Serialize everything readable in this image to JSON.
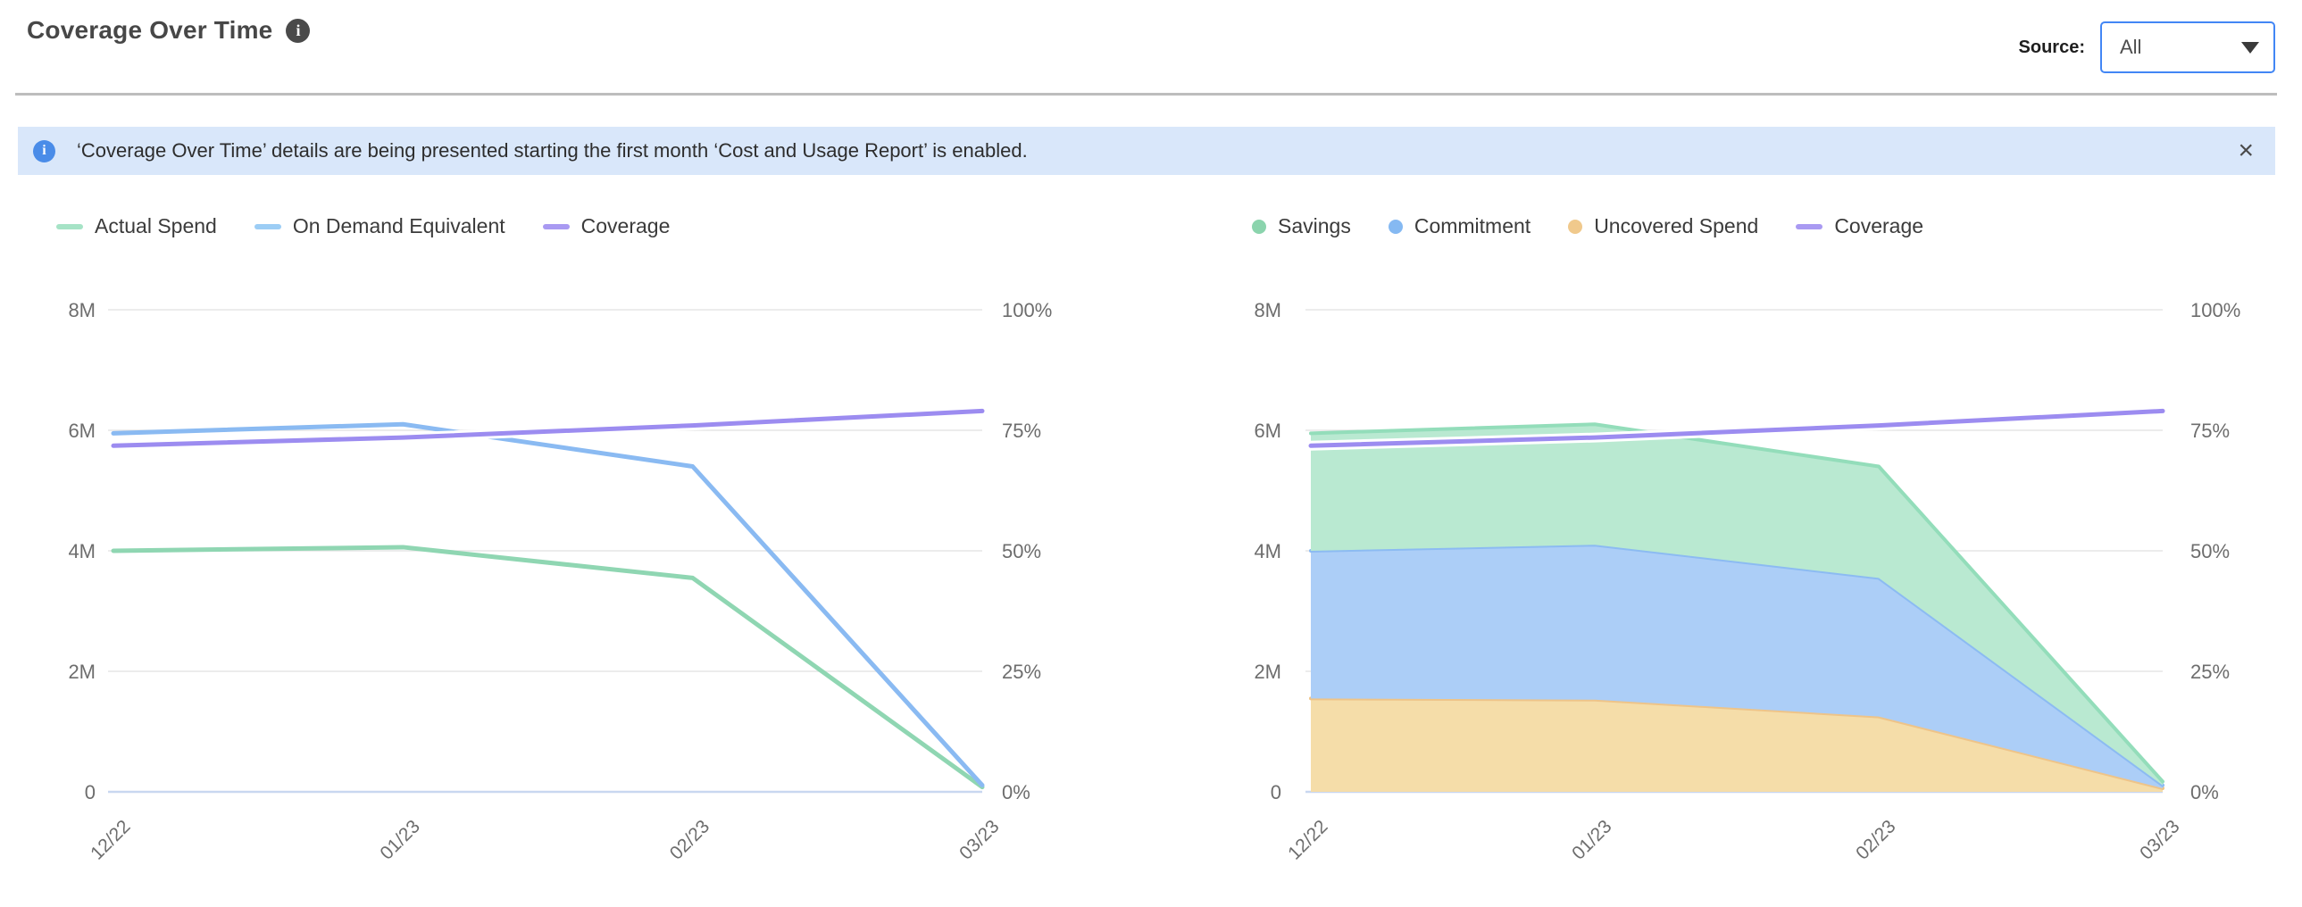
{
  "header": {
    "title": "Coverage Over Time",
    "icons": {
      "info_glyph": "i"
    },
    "source_label": "Source:",
    "source_value": "All"
  },
  "banner": {
    "icon_glyph": "i",
    "text": "‘Coverage Over Time’ details are being presented starting the first month ‘Cost and Usage Report’ is enabled.",
    "close_glyph": "×"
  },
  "colors": {
    "banner_bg": "#d9e7fa",
    "banner_icon": "#4a8ce8",
    "dropdown_border": "#4286f5",
    "grid": "#e5e5e5",
    "baseline": "#c9d7f0",
    "axis_text": "#6d6d6d",
    "green": "#8fd6b2",
    "blue": "#8abaf2",
    "purple": "#9c8cf0",
    "tan": "#f0c98c"
  },
  "chart_data": [
    {
      "id": "spend-coverage-line-chart",
      "type": "line",
      "categories": [
        "12/22",
        "01/23",
        "02/23",
        "03/23"
      ],
      "y_left": {
        "ticks": [
          "8M",
          "6M",
          "4M",
          "2M",
          "0"
        ],
        "max": 8000000,
        "lim": [
          0,
          8000000
        ]
      },
      "y_right": {
        "ticks": [
          "100%",
          "75%",
          "50%",
          "25%",
          "0%"
        ],
        "max": 100,
        "lim": [
          0,
          100
        ]
      },
      "grid": true,
      "legend_position": "top-left",
      "legend": [
        {
          "label": "Actual Spend",
          "marker": "line",
          "color": "#a6e3c6"
        },
        {
          "label": "On Demand Equivalent",
          "marker": "line",
          "color": "#9ccdf5"
        },
        {
          "label": "Coverage",
          "marker": "line",
          "color": "#a99af2"
        }
      ],
      "series": [
        {
          "name": "Actual Spend",
          "axis": "left",
          "kind": "line",
          "color": "#8fd6b2",
          "values": [
            4000000,
            4060000,
            3550000,
            80000
          ]
        },
        {
          "name": "On Demand Equivalent",
          "axis": "left",
          "kind": "line",
          "color": "#8abaf2",
          "values": [
            5950000,
            6100000,
            5400000,
            110000
          ]
        },
        {
          "name": "Coverage",
          "axis": "right",
          "kind": "line",
          "color": "#9c8cf0",
          "halo": true,
          "values": [
            71.8,
            73.5,
            76,
            79
          ]
        }
      ]
    },
    {
      "id": "savings-stacked-area-chart",
      "type": "stacked-area",
      "categories": [
        "12/22",
        "01/23",
        "02/23",
        "03/23"
      ],
      "y_left": {
        "ticks": [
          "8M",
          "6M",
          "4M",
          "2M",
          "0"
        ],
        "max": 8000000,
        "lim": [
          0,
          8000000
        ]
      },
      "y_right": {
        "ticks": [
          "100%",
          "75%",
          "50%",
          "25%",
          "0%"
        ],
        "max": 100,
        "lim": [
          0,
          100
        ]
      },
      "grid": true,
      "legend_position": "top-left",
      "legend": [
        {
          "label": "Savings",
          "marker": "dot",
          "color": "#8bd4ad"
        },
        {
          "label": "Commitment",
          "marker": "dot",
          "color": "#85b9f2"
        },
        {
          "label": "Uncovered Spend",
          "marker": "dot",
          "color": "#f0c98c"
        },
        {
          "label": "Coverage",
          "marker": "line",
          "color": "#a99af2"
        }
      ],
      "series": [
        {
          "name": "Uncovered Spend",
          "axis": "left",
          "kind": "area",
          "fill": "#f5dda9",
          "edge": "#eec489",
          "values": [
            1550000,
            1530000,
            1250000,
            60000
          ]
        },
        {
          "name": "Commitment",
          "axis": "left",
          "kind": "area",
          "fill": "#accef7",
          "edge": "#8cbbf2",
          "values": [
            2450000,
            2570000,
            2300000,
            50000
          ]
        },
        {
          "name": "Savings",
          "axis": "left",
          "kind": "area",
          "fill": "#b9e9d1",
          "edge": "#93ddba",
          "values": [
            1950000,
            2000000,
            1850000,
            60000
          ]
        },
        {
          "name": "Coverage",
          "axis": "right",
          "kind": "line",
          "color": "#9c8cf0",
          "halo": true,
          "values": [
            71.8,
            73.5,
            76,
            79
          ]
        }
      ]
    }
  ]
}
